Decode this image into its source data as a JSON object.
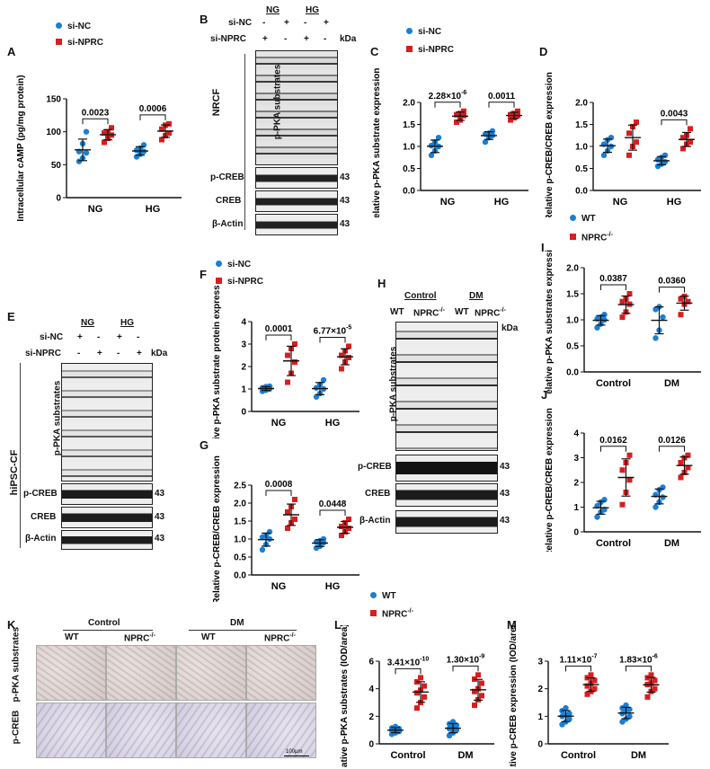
{
  "colors": {
    "nc": "#1a7fd6",
    "npr": "#d81e1e",
    "wt": "#1a7fd6",
    "ko": "#d81e1e"
  },
  "legend": {
    "si_nc": "si-NC",
    "si_nprc": "si-NPRC",
    "wt": "WT",
    "npr_ko": "NPRC",
    "ko_sup": "-/-"
  },
  "panels": {
    "A": "A",
    "B": "B",
    "C": "C",
    "D": "D",
    "E": "E",
    "F": "F",
    "G": "G",
    "H": "H",
    "I": "I",
    "J": "J",
    "K": "K",
    "L": "L",
    "M": "M"
  },
  "blotB": {
    "cond_ng": "NG",
    "cond_hg": "HG",
    "row1": "si-NC",
    "row2": "si-NPRC",
    "signs_nc": [
      "-",
      "+",
      "-",
      "+"
    ],
    "signs_npr": [
      "+",
      "-",
      "+",
      "-"
    ],
    "kda": "kDa",
    "side": "NRCF",
    "substrates": "p-PKA substrates",
    "creb_p": "p-CREB",
    "creb": "CREB",
    "actin": "β-Actin",
    "mw": "43"
  },
  "blotE": {
    "cond_ng": "NG",
    "cond_hg": "HG",
    "row1": "si-NC",
    "row2": "si-NPRC",
    "signs_nc": [
      "+",
      "-",
      "+",
      "-"
    ],
    "signs_npr": [
      "-",
      "+",
      "-",
      "+"
    ],
    "kda": "kDa",
    "side": "hiPSC-CF",
    "substrates": "p-PKA substrates",
    "creb_p": "p-CREB",
    "creb": "CREB",
    "actin": "β-Actin",
    "mw": "43"
  },
  "blotH": {
    "cond_ctrl": "Control",
    "cond_dm": "DM",
    "wt": "WT",
    "ko": "NPRC",
    "ko_sup": "-/-",
    "kda": "kDa",
    "substrates": "p-PKA substrates",
    "creb_p": "p-CREB",
    "creb": "CREB",
    "actin": "β-Actin",
    "mw": "43"
  },
  "ihcK": {
    "cond_ctrl": "Control",
    "cond_dm": "DM",
    "wt": "WT",
    "ko": "NPRC",
    "ko_sup": "-/-",
    "row1": "p-PKA substrates",
    "row2": "p-CREB",
    "scale": "100μm"
  },
  "chart_data": [
    {
      "id": "A",
      "type": "scatter",
      "ylabel": "Intracellular cAMP (pg/mg protein)",
      "categories": [
        "NG",
        "HG"
      ],
      "ylim": [
        0,
        150
      ],
      "yticks": [
        0,
        50,
        100,
        150
      ],
      "series": [
        {
          "name": "si-NC",
          "values": [
            [
              55,
              60,
              68,
              70,
              82,
              100
            ],
            [
              62,
              66,
              70,
              72,
              75,
              80
            ]
          ]
        },
        {
          "name": "si-NPRC",
          "values": [
            [
              84,
              90,
              95,
              98,
              100,
              106
            ],
            [
              88,
              94,
              98,
              104,
              110,
              112
            ]
          ]
        }
      ],
      "pvalues": [
        "0.0023",
        "0.0006"
      ]
    },
    {
      "id": "C",
      "type": "scatter",
      "ylabel": "Relative p-PKA substrate expression",
      "categories": [
        "NG",
        "HG"
      ],
      "ylim": [
        0,
        2.0
      ],
      "yticks": [
        0.0,
        0.5,
        1.0,
        1.5,
        2.0
      ],
      "series": [
        {
          "name": "si-NC",
          "values": [
            [
              0.8,
              0.9,
              1.0,
              1.02,
              1.1,
              1.2
            ],
            [
              1.1,
              1.2,
              1.25,
              1.28,
              1.3,
              1.35
            ]
          ]
        },
        {
          "name": "si-NPRC",
          "values": [
            [
              1.55,
              1.6,
              1.7,
              1.72,
              1.75,
              1.8
            ],
            [
              1.6,
              1.65,
              1.7,
              1.72,
              1.75,
              1.8
            ]
          ]
        }
      ],
      "pvalues": [
        "2.28×10",
        "0.0011"
      ],
      "pexp": [
        "-6",
        ""
      ]
    },
    {
      "id": "D",
      "type": "scatter",
      "ylabel": "Relative p-CREB/CREB expression",
      "categories": [
        "NG",
        "HG"
      ],
      "ylim": [
        0,
        2.0
      ],
      "yticks": [
        0.0,
        0.5,
        1.0,
        1.5,
        2.0
      ],
      "series": [
        {
          "name": "si-NC",
          "values": [
            [
              0.8,
              0.9,
              1.0,
              1.05,
              1.15,
              1.2
            ],
            [
              0.55,
              0.6,
              0.65,
              0.7,
              0.75,
              0.8
            ]
          ]
        },
        {
          "name": "si-NPRC",
          "values": [
            [
              0.8,
              1.0,
              1.1,
              1.3,
              1.45,
              1.55
            ],
            [
              0.95,
              1.05,
              1.1,
              1.2,
              1.25,
              1.4
            ]
          ]
        }
      ],
      "pvalues": [
        "",
        "0.0043"
      ]
    },
    {
      "id": "F",
      "type": "scatter",
      "ylabel": "Relative p-PKA substrate protein expression",
      "categories": [
        "NG",
        "HG"
      ],
      "ylim": [
        0,
        4
      ],
      "yticks": [
        0,
        1,
        2,
        3,
        4
      ],
      "series": [
        {
          "name": "si-NC",
          "values": [
            [
              0.9,
              0.95,
              1.0,
              1.05,
              1.1,
              1.12
            ],
            [
              0.65,
              0.8,
              1.0,
              1.05,
              1.2,
              1.4
            ]
          ]
        },
        {
          "name": "si-NPRC",
          "values": [
            [
              1.3,
              1.7,
              2.2,
              2.5,
              2.8,
              3.0
            ],
            [
              1.9,
              2.2,
              2.4,
              2.5,
              2.7,
              2.9
            ]
          ]
        }
      ],
      "pvalues": [
        "0.0001",
        "6.77×10"
      ],
      "pexp": [
        "",
        "-5"
      ]
    },
    {
      "id": "G",
      "type": "scatter",
      "ylabel": "Relative p-CREB/CREB expression",
      "categories": [
        "NG",
        "HG"
      ],
      "ylim": [
        0,
        2.5
      ],
      "yticks": [
        0.0,
        0.5,
        1.0,
        1.5,
        2.0,
        2.5
      ],
      "series": [
        {
          "name": "si-NC",
          "values": [
            [
              0.7,
              0.85,
              1.0,
              1.05,
              1.1,
              1.2
            ],
            [
              0.75,
              0.8,
              0.9,
              0.92,
              0.95,
              1.0
            ]
          ]
        },
        {
          "name": "si-NPRC",
          "values": [
            [
              1.3,
              1.45,
              1.55,
              1.75,
              1.9,
              2.1
            ],
            [
              1.1,
              1.2,
              1.3,
              1.35,
              1.45,
              1.55
            ]
          ]
        }
      ],
      "pvalues": [
        "0.0008",
        "0.0448"
      ]
    },
    {
      "id": "I",
      "type": "scatter",
      "ylabel": "Relative p-PKA substrates expression",
      "categories": [
        "Control",
        "DM"
      ],
      "ylim": [
        0,
        2.0
      ],
      "yticks": [
        0.0,
        0.5,
        1.0,
        1.5,
        2.0
      ],
      "series": [
        {
          "name": "WT",
          "values": [
            [
              0.85,
              0.92,
              1.0,
              1.02,
              1.05,
              1.1
            ],
            [
              0.65,
              0.8,
              1.05,
              1.2,
              1.25
            ]
          ]
        },
        {
          "name": "NPRC-/-",
          "values": [
            [
              1.05,
              1.15,
              1.3,
              1.35,
              1.4,
              1.5
            ],
            [
              1.1,
              1.3,
              1.35,
              1.4,
              1.45
            ]
          ]
        }
      ],
      "pvalues": [
        "0.0387",
        "0.0360"
      ]
    },
    {
      "id": "J",
      "type": "scatter",
      "ylabel": "Relative p-CREB/CREB expression",
      "categories": [
        "Control",
        "DM"
      ],
      "ylim": [
        0,
        4
      ],
      "yticks": [
        0,
        1,
        2,
        3,
        4
      ],
      "series": [
        {
          "name": "WT",
          "values": [
            [
              0.6,
              0.8,
              0.9,
              1.05,
              1.2,
              1.3
            ],
            [
              1.0,
              1.2,
              1.4,
              1.5,
              1.7,
              1.8
            ]
          ]
        },
        {
          "name": "NPRC-/-",
          "values": [
            [
              1.1,
              1.6,
              2.1,
              2.5,
              2.8,
              3.1
            ],
            [
              2.2,
              2.4,
              2.6,
              2.8,
              3.0,
              3.1
            ]
          ]
        }
      ],
      "pvalues": [
        "0.0162",
        "0.0126"
      ]
    },
    {
      "id": "L",
      "type": "scatter",
      "ylabel": "Relative p-PKA substrates (IOD/area)",
      "categories": [
        "Control",
        "DM"
      ],
      "ylim": [
        0,
        6
      ],
      "yticks": [
        0,
        2,
        4,
        6
      ],
      "series": [
        {
          "name": "WT",
          "values": [
            [
              0.7,
              0.8,
              0.9,
              1.0,
              1.05,
              1.1,
              1.15,
              1.25
            ],
            [
              0.6,
              0.8,
              1.0,
              1.1,
              1.2,
              1.35,
              1.45,
              1.6
            ]
          ]
        },
        {
          "name": "NPRC-/-",
          "values": [
            [
              2.6,
              3.0,
              3.4,
              3.7,
              3.9,
              4.2,
              4.5,
              4.8
            ],
            [
              2.8,
              3.2,
              3.5,
              3.8,
              4.0,
              4.4,
              4.7,
              5.0
            ]
          ]
        }
      ],
      "pvalues": [
        "3.41×10",
        "1.30×10"
      ],
      "pexp": [
        "-10",
        "-9"
      ]
    },
    {
      "id": "M",
      "type": "scatter",
      "ylabel": "Relative p-CREB expression (IOD/area)",
      "categories": [
        "Control",
        "DM"
      ],
      "ylim": [
        0,
        3
      ],
      "yticks": [
        0,
        1,
        2,
        3
      ],
      "series": [
        {
          "name": "WT",
          "values": [
            [
              0.7,
              0.8,
              0.9,
              1.0,
              1.05,
              1.1,
              1.2,
              1.3
            ],
            [
              0.8,
              0.9,
              1.0,
              1.1,
              1.2,
              1.25,
              1.3,
              1.4
            ]
          ]
        },
        {
          "name": "NPRC-/-",
          "values": [
            [
              1.8,
              1.9,
              2.0,
              2.1,
              2.2,
              2.3,
              2.4,
              2.5
            ],
            [
              1.7,
              1.9,
              2.0,
              2.15,
              2.2,
              2.3,
              2.4,
              2.5
            ]
          ]
        }
      ],
      "pvalues": [
        "1.11×10",
        "1.83×10"
      ],
      "pexp": [
        "-7",
        "-6"
      ]
    }
  ]
}
